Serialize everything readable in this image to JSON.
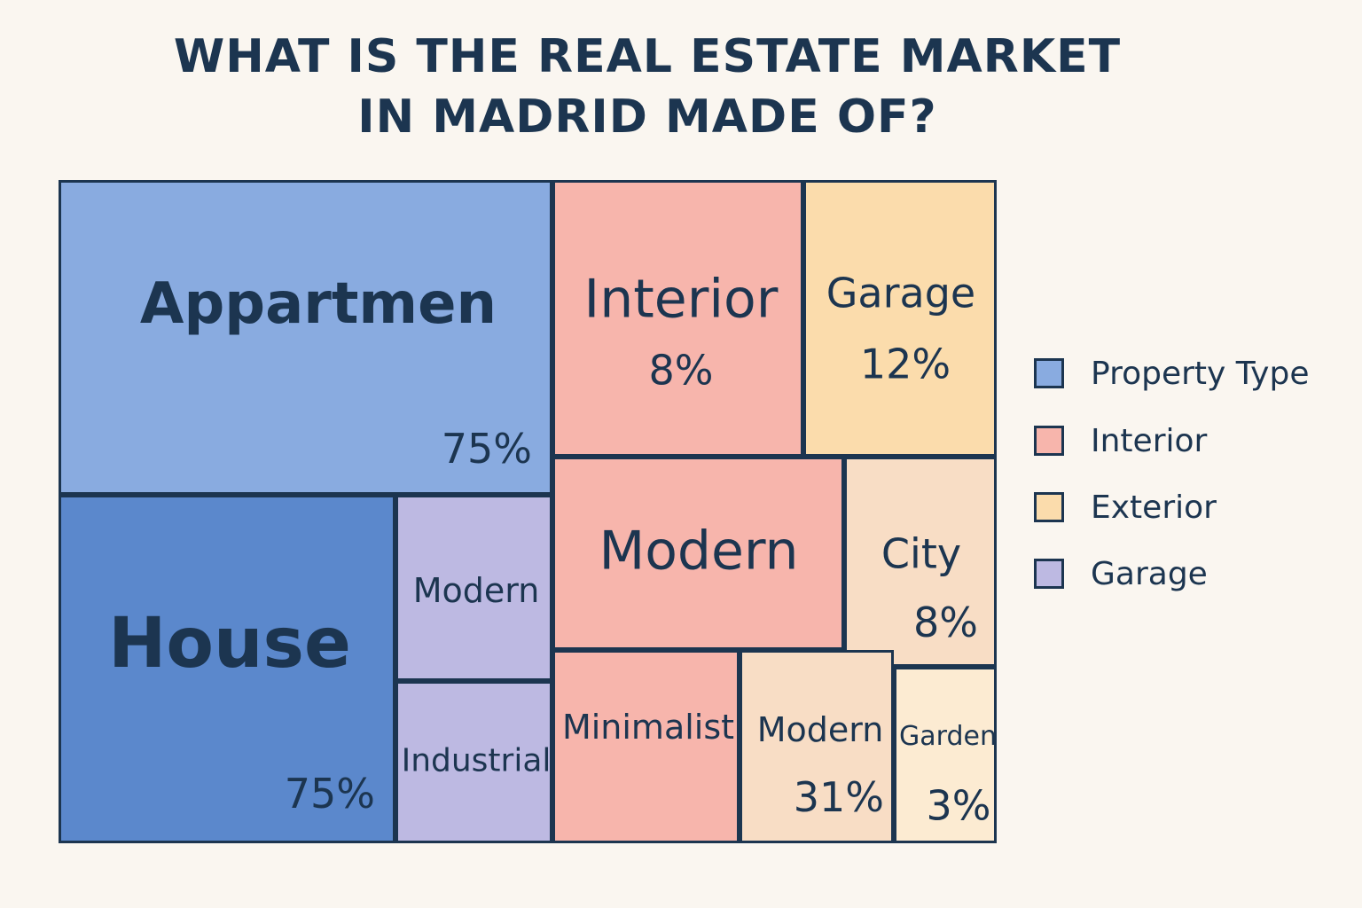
{
  "title": {
    "line1": "WHAT IS THE REAL ESTATE MARKET",
    "line2": "IN MADRID MADE OF?"
  },
  "colors": {
    "property_type_light": "#89abe0",
    "property_type_dark": "#5b88cc",
    "interior": "#f7b5ac",
    "exterior": "#fbdcac",
    "exterior_light": "#f8ddc5",
    "exterior_pale": "#fcebd2",
    "garage": "#bdb9e2",
    "border": "#1c3550"
  },
  "legend": [
    {
      "label": "Property Type",
      "color": "#89abe0"
    },
    {
      "label": "Interior",
      "color": "#f7b5ac"
    },
    {
      "label": "Exterior",
      "color": "#fbdcac"
    },
    {
      "label": "Garage",
      "color": "#bdb9e2"
    }
  ],
  "chart_data": {
    "type": "treemap",
    "title": "WHAT IS THE REAL ESTATE MARKET IN MADRID MADE OF?",
    "tiles": [
      {
        "label": "Appartmen",
        "value_label": "75%",
        "group": "Property Type",
        "color": "#89abe0"
      },
      {
        "label": "House",
        "value_label": "75%",
        "group": "Property Type",
        "color": "#5b88cc"
      },
      {
        "label": "Modern",
        "value_label": "",
        "group": "Garage",
        "color": "#bdb9e2"
      },
      {
        "label": "Industrial",
        "value_label": "",
        "group": "Garage",
        "color": "#bdb9e2"
      },
      {
        "label": "Interior",
        "value_label": "8%",
        "group": "Interior",
        "color": "#f7b5ac"
      },
      {
        "label": "Garage",
        "value_label": "12%",
        "group": "Exterior",
        "color": "#fbdcac"
      },
      {
        "label": "Modern",
        "value_label": "",
        "group": "Interior",
        "color": "#f7b5ac"
      },
      {
        "label": "City",
        "value_label": "8%",
        "group": "Exterior",
        "color": "#f8ddc5"
      },
      {
        "label": "Minimalist",
        "value_label": "",
        "group": "Interior",
        "color": "#f7b5ac"
      },
      {
        "label": "Modern",
        "value_label": "31%",
        "group": "Exterior",
        "color": "#f8ddc5"
      },
      {
        "label": "Garden",
        "value_label": "3%",
        "group": "Exterior",
        "color": "#fcebd2"
      }
    ]
  }
}
